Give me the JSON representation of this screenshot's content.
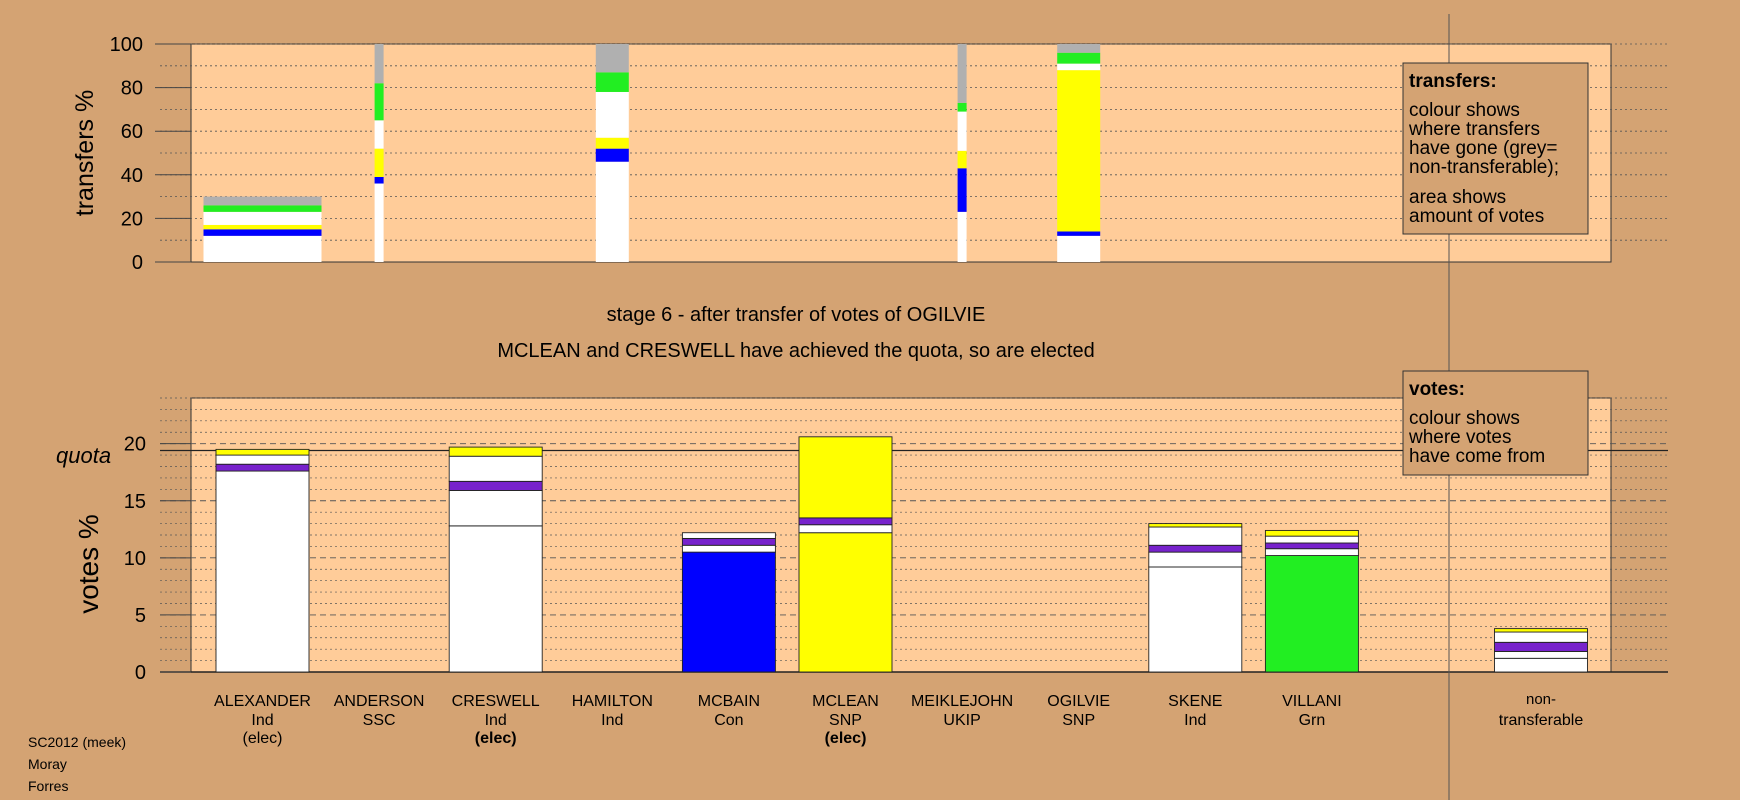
{
  "chart_data": [
    {
      "type": "bar",
      "panel": "transfers",
      "ylabel": "transfers %",
      "ylim": [
        0,
        100
      ],
      "yticks": [
        0,
        20,
        40,
        60,
        80,
        100
      ],
      "legend": {
        "title": "transfers:",
        "lines": [
          "colour shows",
          "where transfers",
          "have gone (grey=",
          "non-transferable);",
          "area shows",
          "amount of votes"
        ]
      },
      "transfer_columns": [
        {
          "from": "ALEXANDER",
          "segments": [
            {
              "to": "ALEXANDER",
              "from_pct": 0,
              "to_pct": 12,
              "color": "#ffffff"
            },
            {
              "to": "MCBAIN",
              "from_pct": 12,
              "to_pct": 15,
              "color": "#0000ff"
            },
            {
              "to": "MCLEAN",
              "from_pct": 15,
              "to_pct": 17,
              "color": "#ffff00"
            },
            {
              "to": "SKENE",
              "from_pct": 17,
              "to_pct": 23,
              "color": "#ffffff"
            },
            {
              "to": "VILLANI",
              "from_pct": 23,
              "to_pct": 26,
              "color": "#22ee22"
            },
            {
              "to": "non-transferable",
              "from_pct": 26,
              "to_pct": 30,
              "color": "#b0b0b0"
            }
          ]
        },
        {
          "from": "ANDERSON",
          "segments": [
            {
              "to": "ALEXANDER",
              "from_pct": 0,
              "to_pct": 36,
              "color": "#ffffff"
            },
            {
              "to": "MCBAIN",
              "from_pct": 36,
              "to_pct": 39,
              "color": "#0000ff"
            },
            {
              "to": "MCLEAN",
              "from_pct": 39,
              "to_pct": 52,
              "color": "#ffff00"
            },
            {
              "to": "SKENE",
              "from_pct": 52,
              "to_pct": 65,
              "color": "#ffffff"
            },
            {
              "to": "VILLANI",
              "from_pct": 65,
              "to_pct": 82,
              "color": "#22ee22"
            },
            {
              "to": "non-transferable",
              "from_pct": 82,
              "to_pct": 100,
              "color": "#b0b0b0"
            }
          ]
        },
        {
          "from": "HAMILTON",
          "segments": [
            {
              "to": "CRESWELL",
              "from_pct": 0,
              "to_pct": 46,
              "color": "#ffffff"
            },
            {
              "to": "MCBAIN",
              "from_pct": 46,
              "to_pct": 52,
              "color": "#0000ff"
            },
            {
              "to": "MCLEAN",
              "from_pct": 52,
              "to_pct": 57,
              "color": "#ffff00"
            },
            {
              "to": "SKENE",
              "from_pct": 57,
              "to_pct": 78,
              "color": "#ffffff"
            },
            {
              "to": "VILLANI",
              "from_pct": 78,
              "to_pct": 87,
              "color": "#22ee22"
            },
            {
              "to": "non-transferable",
              "from_pct": 87,
              "to_pct": 100,
              "color": "#b0b0b0"
            }
          ]
        },
        {
          "from": "MEIKLEJOHN",
          "segments": [
            {
              "to": "CRESWELL",
              "from_pct": 0,
              "to_pct": 23,
              "color": "#ffffff"
            },
            {
              "to": "MCBAIN",
              "from_pct": 23,
              "to_pct": 43,
              "color": "#0000ff"
            },
            {
              "to": "MCLEAN",
              "from_pct": 43,
              "to_pct": 51,
              "color": "#ffff00"
            },
            {
              "to": "SKENE",
              "from_pct": 51,
              "to_pct": 69,
              "color": "#ffffff"
            },
            {
              "to": "VILLANI",
              "from_pct": 69,
              "to_pct": 73,
              "color": "#22ee22"
            },
            {
              "to": "non-transferable",
              "from_pct": 73,
              "to_pct": 100,
              "color": "#b0b0b0"
            }
          ]
        },
        {
          "from": "OGILVIE",
          "segments": [
            {
              "to": "CRESWELL",
              "from_pct": 0,
              "to_pct": 12,
              "color": "#ffffff"
            },
            {
              "to": "MCBAIN",
              "from_pct": 12,
              "to_pct": 14,
              "color": "#0000ff"
            },
            {
              "to": "MCLEAN",
              "from_pct": 14,
              "to_pct": 88,
              "color": "#ffff00"
            },
            {
              "to": "SKENE",
              "from_pct": 88,
              "to_pct": 91,
              "color": "#ffffff"
            },
            {
              "to": "VILLANI",
              "from_pct": 91,
              "to_pct": 96,
              "color": "#22ee22"
            },
            {
              "to": "non-transferable",
              "from_pct": 96,
              "to_pct": 100,
              "color": "#b0b0b0"
            }
          ]
        }
      ]
    },
    {
      "type": "bar",
      "panel": "votes",
      "ylabel": "votes %",
      "ylim": [
        0,
        24
      ],
      "yticks": [
        0,
        5,
        10,
        15,
        20
      ],
      "quota": 19.4,
      "quota_label": "quota",
      "legend": {
        "title": "votes:",
        "lines": [
          "colour shows",
          "where votes",
          "have come from"
        ]
      },
      "candidates": [
        {
          "name": "ALEXANDER",
          "party": "Ind",
          "status": "(elec)",
          "status_bold": false,
          "segments": [
            {
              "value": 17.6,
              "color": "#ffffff"
            },
            {
              "value": 0.6,
              "color": "#7722cc"
            },
            {
              "value": 0.8,
              "color": "#ffffff"
            },
            {
              "value": 0.5,
              "color": "#ffff00"
            }
          ]
        },
        {
          "name": "ANDERSON",
          "party": "SSC",
          "status": "",
          "status_bold": false,
          "segments": []
        },
        {
          "name": "CRESWELL",
          "party": "Ind",
          "status": "(elec)",
          "status_bold": true,
          "segments": [
            {
              "value": 12.8,
              "color": "#ffffff"
            },
            {
              "value": 3.1,
              "color": "#ffffff"
            },
            {
              "value": 0.8,
              "color": "#7722cc"
            },
            {
              "value": 2.2,
              "color": "#ffffff"
            },
            {
              "value": 0.8,
              "color": "#ffff00"
            }
          ]
        },
        {
          "name": "HAMILTON",
          "party": "Ind",
          "status": "",
          "status_bold": false,
          "segments": []
        },
        {
          "name": "MCBAIN",
          "party": "Con",
          "status": "",
          "status_bold": false,
          "segments": [
            {
              "value": 10.5,
              "color": "#0000ff"
            },
            {
              "value": 0.6,
              "color": "#ffffff"
            },
            {
              "value": 0.6,
              "color": "#7722cc"
            },
            {
              "value": 0.5,
              "color": "#ffffff"
            }
          ]
        },
        {
          "name": "MCLEAN",
          "party": "SNP",
          "status": "(elec)",
          "status_bold": true,
          "segments": [
            {
              "value": 12.2,
              "color": "#ffff00"
            },
            {
              "value": 0.7,
              "color": "#ffffff"
            },
            {
              "value": 0.6,
              "color": "#7722cc"
            },
            {
              "value": 7.1,
              "color": "#ffff00"
            }
          ]
        },
        {
          "name": "MEIKLEJOHN",
          "party": "UKIP",
          "status": "",
          "status_bold": false,
          "segments": []
        },
        {
          "name": "OGILVIE",
          "party": "SNP",
          "status": "",
          "status_bold": false,
          "segments": []
        },
        {
          "name": "SKENE",
          "party": "Ind",
          "status": "",
          "status_bold": false,
          "segments": [
            {
              "value": 9.2,
              "color": "#ffffff"
            },
            {
              "value": 1.3,
              "color": "#ffffff"
            },
            {
              "value": 0.6,
              "color": "#7722cc"
            },
            {
              "value": 1.6,
              "color": "#ffffff"
            },
            {
              "value": 0.3,
              "color": "#ffff00"
            }
          ]
        },
        {
          "name": "VILLANI",
          "party": "Grn",
          "status": "",
          "status_bold": false,
          "segments": [
            {
              "value": 10.2,
              "color": "#22ee22"
            },
            {
              "value": 0.6,
              "color": "#ffffff"
            },
            {
              "value": 0.5,
              "color": "#7722cc"
            },
            {
              "value": 0.6,
              "color": "#ffffff"
            },
            {
              "value": 0.5,
              "color": "#ffff00"
            }
          ]
        }
      ],
      "nontransferable": {
        "name": "non-",
        "name2": "transferable",
        "segments": [
          {
            "value": 1.2,
            "color": "#ffffff"
          },
          {
            "value": 0.6,
            "color": "#ffffff"
          },
          {
            "value": 0.8,
            "color": "#7722cc"
          },
          {
            "value": 0.9,
            "color": "#ffffff"
          },
          {
            "value": 0.3,
            "color": "#ffff00"
          }
        ]
      }
    }
  ],
  "stage_line1": "stage 6 - after transfer of votes of OGILVIE",
  "stage_line2": "MCLEAN and CRESWELL have achieved the quota, so are elected",
  "footer": [
    "SC2012 (meek)",
    "Moray",
    "Forres"
  ],
  "colors": {
    "background": "#d4a373",
    "plot": "#ffcc99",
    "legend_box": "#d4a373"
  }
}
